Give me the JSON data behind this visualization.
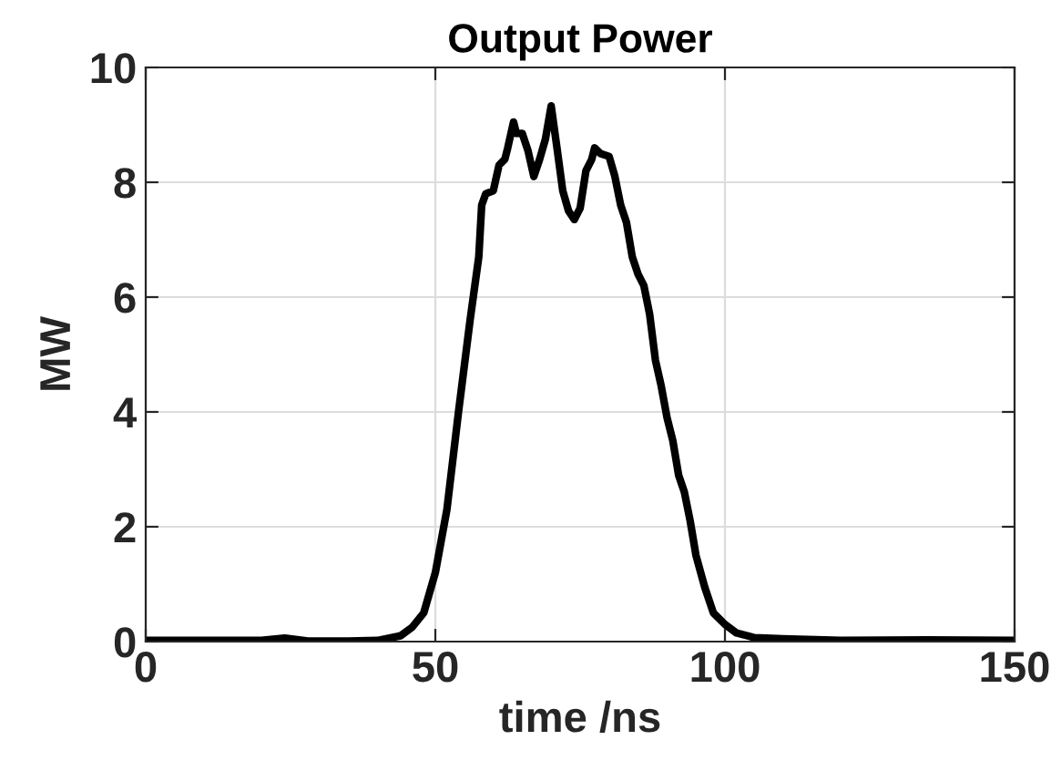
{
  "chart_data": {
    "type": "line",
    "title": "Output Power",
    "xlabel": "time /ns",
    "ylabel": "MW",
    "xlim": [
      0,
      150
    ],
    "ylim": [
      0,
      10
    ],
    "xticks": [
      0,
      50,
      100,
      150
    ],
    "yticks": [
      0,
      2,
      4,
      6,
      8,
      10
    ],
    "grid": true,
    "line_style": "solid",
    "series": [
      {
        "color": "#000000",
        "x": [
          0,
          10,
          20,
          24,
          28,
          35,
          40,
          44,
          46,
          48,
          50,
          52,
          54,
          56,
          57.5,
          58,
          58.7,
          60,
          61,
          62,
          62.5,
          63.5,
          64,
          65,
          66,
          67,
          68,
          69,
          70,
          71,
          72,
          73,
          74,
          75,
          76,
          77,
          77.5,
          78.5,
          80,
          81,
          82,
          83,
          84,
          85,
          86,
          87,
          88,
          89,
          90,
          91,
          92,
          93,
          94,
          95,
          96.5,
          98,
          100,
          102,
          105,
          110,
          120,
          135,
          150
        ],
        "values": [
          0.02,
          0.02,
          0.02,
          0.06,
          0.01,
          0.01,
          0.02,
          0.1,
          0.25,
          0.5,
          1.2,
          2.3,
          4.0,
          5.6,
          6.7,
          7.6,
          7.8,
          7.85,
          8.3,
          8.4,
          8.6,
          9.05,
          8.85,
          8.85,
          8.55,
          8.1,
          8.4,
          8.75,
          9.33,
          8.6,
          7.85,
          7.5,
          7.35,
          7.55,
          8.2,
          8.4,
          8.6,
          8.5,
          8.45,
          8.1,
          7.6,
          7.3,
          6.7,
          6.4,
          6.2,
          5.7,
          4.9,
          4.45,
          3.9,
          3.5,
          2.9,
          2.6,
          2.1,
          1.5,
          0.95,
          0.5,
          0.3,
          0.15,
          0.07,
          0.05,
          0.02,
          0.03,
          0.02
        ]
      }
    ]
  }
}
